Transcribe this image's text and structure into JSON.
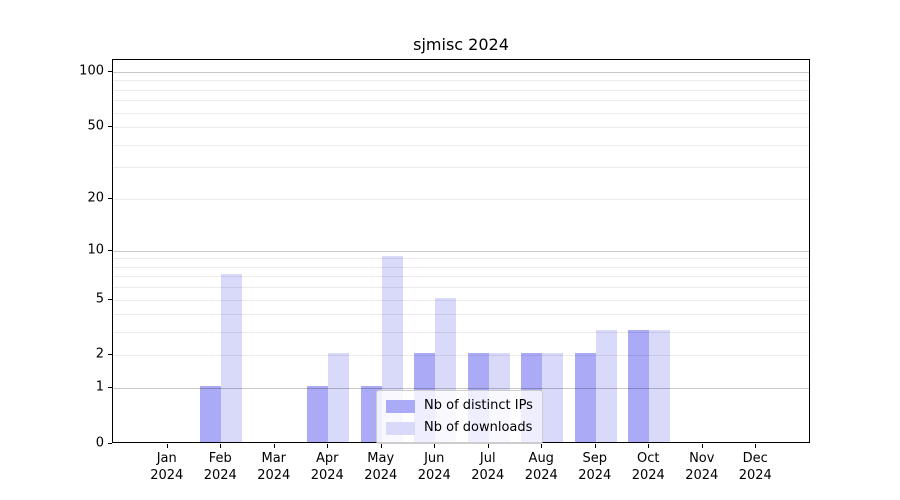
{
  "title": "sjmisc 2024",
  "colors": {
    "distinct_ips": "#aaaaf7",
    "downloads": "#d9d9fa",
    "grid_major": "rgba(0,0,0,0.22)",
    "grid_minor": "rgba(0,0,0,0.08)",
    "spine": "#000000",
    "text": "#000000"
  },
  "legend": {
    "entries": [
      {
        "label": "Nb of distinct IPs",
        "color_key": "distinct_ips"
      },
      {
        "label": "Nb of downloads",
        "color_key": "downloads"
      }
    ]
  },
  "chart_data": {
    "type": "bar",
    "title": "sjmisc 2024",
    "scale": "log1p",
    "months": [
      "Jan",
      "Feb",
      "Mar",
      "Apr",
      "May",
      "Jun",
      "Jul",
      "Aug",
      "Sep",
      "Oct",
      "Nov",
      "Dec"
    ],
    "year": "2024",
    "series": [
      {
        "name": "Nb of distinct IPs",
        "values": [
          0,
          1,
          0,
          1,
          1,
          2,
          2,
          2,
          2,
          3,
          0,
          0
        ]
      },
      {
        "name": "Nb of downloads",
        "values": [
          0,
          7,
          0,
          2,
          9,
          5,
          2,
          2,
          3,
          3,
          0,
          0
        ]
      }
    ],
    "yticks": [
      0,
      1,
      2,
      5,
      10,
      20,
      50,
      100
    ],
    "grid_major": [
      1,
      10,
      100
    ],
    "grid_minor": [
      2,
      3,
      4,
      5,
      6,
      7,
      8,
      9,
      20,
      30,
      40,
      50,
      60,
      70,
      80,
      90
    ],
    "ylim": [
      0,
      116
    ],
    "xlabel": "",
    "ylabel": "",
    "grid": true,
    "legend_position": "lower center-right"
  }
}
